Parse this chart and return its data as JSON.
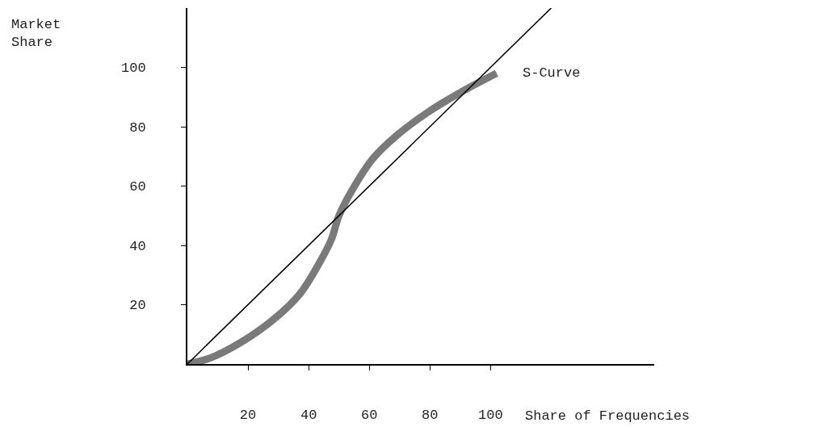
{
  "chart_data": {
    "type": "line",
    "xlabel": "Share of Frequencies",
    "ylabel": "Market Share",
    "xlim": [
      0,
      154
    ],
    "ylim": [
      0,
      120
    ],
    "xticks": [
      20,
      40,
      60,
      80,
      100
    ],
    "yticks": [
      20,
      40,
      60,
      80,
      100
    ],
    "legend": false,
    "marker": "none",
    "series": [
      {
        "name": "S-Curve",
        "color": "#7a7a7a",
        "x": [
          0,
          7.5,
          18,
          29,
          37,
          43.5,
          47.5,
          50,
          54,
          61,
          69,
          79.5,
          90,
          102
        ],
        "values": [
          0,
          2,
          7.5,
          15.5,
          23.5,
          34,
          42,
          50,
          58,
          69,
          77,
          85,
          91.5,
          98
        ]
      },
      {
        "color": "#000000",
        "x": [
          0,
          120
        ],
        "values": [
          0,
          120
        ]
      }
    ]
  }
}
